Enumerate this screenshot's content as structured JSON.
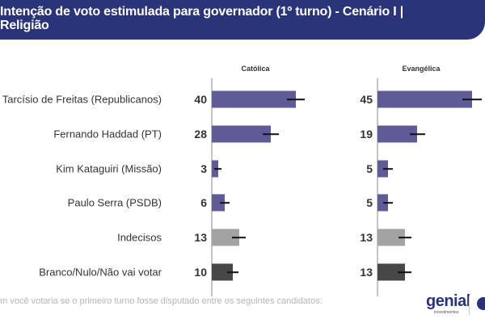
{
  "header": {
    "title": "Intenção de voto estimulada para governador (1º turno) - Cenário I | Religião"
  },
  "footer": {
    "question": "em você votaria se o primeiro turno fosse disputado entre os seguintes candidatos:"
  },
  "logo": {
    "name": "genial",
    "sub": "investimentos"
  },
  "chart_data": {
    "type": "bar",
    "orientation": "horizontal",
    "title": "Intenção de voto estimulada para governador (1º turno) - Cenário I | Religião",
    "categories": [
      "Tarcísio de Freitas (Republicanos)",
      "Fernando Haddad (PT)",
      "Kim Kataguiri (Missão)",
      "Paulo Serra (PSDB)",
      "Indecisos",
      "Branco/Nulo/Não vai votar"
    ],
    "bar_colors": [
      "#5f5b96",
      "#5f5b96",
      "#5f5b96",
      "#5f5b96",
      "#a3a3a3",
      "#474747"
    ],
    "xlim": [
      0,
      50
    ],
    "grid": false,
    "panels": [
      {
        "name": "Católica",
        "values": [
          40,
          28,
          3,
          6,
          13,
          10
        ],
        "error_margin": [
          4.4,
          3.8,
          1.8,
          2.3,
          3.3,
          2.7
        ]
      },
      {
        "name": "Evangélica",
        "values": [
          45,
          19,
          5,
          5,
          13,
          13
        ],
        "error_margin": [
          4.8,
          3.7,
          2.2,
          2.2,
          3.1,
          3.3
        ]
      }
    ]
  }
}
